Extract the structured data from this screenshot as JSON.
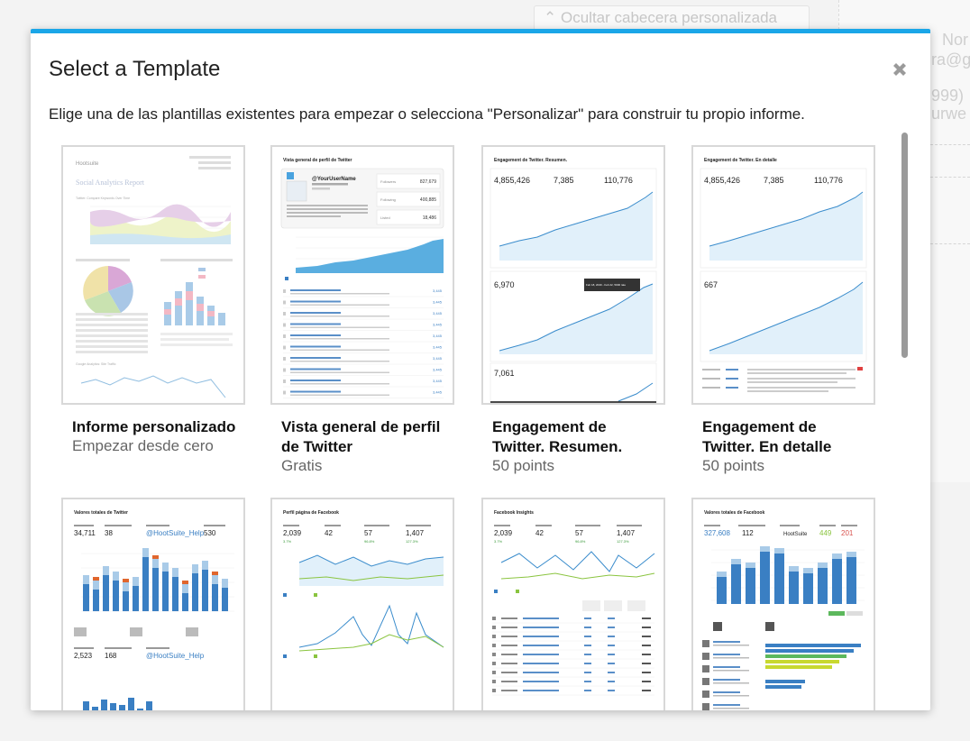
{
  "background": {
    "hide_header_button": "Ocultar cabecera personalizada",
    "side_texts": [
      "Nor",
      "ra@g",
      "999)",
      "urwe"
    ]
  },
  "modal": {
    "title": "Select a Template",
    "description": "Elige una de las plantillas existentes para empezar o selecciona \"Personalizar\" para construir tu propio informe.",
    "close_icon": "close-icon"
  },
  "colors": {
    "accent": "#1aa6e8",
    "chart_blue": "#3a7fc3",
    "chart_orange": "#e0662d",
    "chart_green": "#8ac43f"
  },
  "templates": [
    {
      "title": "Informe personalizado",
      "subtitle": "Empezar desde cero",
      "thumb": {
        "brand": "Hootsuite",
        "heading": "Social Analytics Report",
        "section1": "Twitter: Compare Keywords Over Time",
        "section2": "Google Analytics: Site Traffic"
      }
    },
    {
      "title": "Vista general de perfil de Twitter",
      "subtitle": "Gratis",
      "thumb": {
        "heading": "Vista general de perfil de Twitter",
        "username": "@YourUserName",
        "stats": [
          {
            "label": "Followers",
            "value": "827,679"
          },
          {
            "label": "Following",
            "value": "400,885"
          },
          {
            "label": "Listed",
            "value": "18,486"
          }
        ],
        "tweet_values": [
          "3,445",
          "3,445",
          "3,445",
          "3,445",
          "3,445",
          "3,445",
          "3,445",
          "3,445",
          "3,445",
          "3,445"
        ]
      }
    },
    {
      "title": "Engagement de Twitter. Resumen.",
      "subtitle": "50 points",
      "thumb": {
        "heading": "Engagement de Twitter. Resumen.",
        "kpis": [
          "4,855,426",
          "7,385",
          "110,776"
        ],
        "kpi2": "6,970",
        "kpi3": "7,061",
        "tooltip": "Feb 18, 2040 - Feb 22, 5000 rate"
      }
    },
    {
      "title": "Engagement de Twitter. En detalle",
      "subtitle": "50 points",
      "thumb": {
        "heading": "Engagement de Twitter. En detalle",
        "kpis": [
          "4,855,426",
          "7,385",
          "110,776"
        ],
        "kpi2": "667"
      }
    },
    {
      "title": "",
      "subtitle": "",
      "thumb": {
        "heading": "Valores totales de Twitter",
        "kpis": [
          "34,711",
          "38",
          "@HootSuite_Help",
          "530"
        ],
        "kpis2": [
          "2,523",
          "168",
          "@HootSuite_Help"
        ]
      }
    },
    {
      "title": "",
      "subtitle": "",
      "thumb": {
        "heading": "Perfil página de Facebook",
        "kpis": [
          "2,039",
          "42",
          "57",
          "1,407"
        ],
        "changes": [
          "3.7%",
          "",
          "96.8%",
          "127.3%"
        ]
      }
    },
    {
      "title": "",
      "subtitle": "",
      "thumb": {
        "heading": "Facebook Insights",
        "kpis": [
          "2,039",
          "42",
          "57",
          "1,407"
        ],
        "changes": [
          "3.7%",
          "",
          "96.8%",
          "127.3%"
        ]
      }
    },
    {
      "title": "",
      "subtitle": "",
      "thumb": {
        "heading": "Valores totales de Facebook",
        "kpis": [
          "327,608",
          "112",
          "HootSuite",
          "449",
          "201"
        ]
      }
    }
  ]
}
